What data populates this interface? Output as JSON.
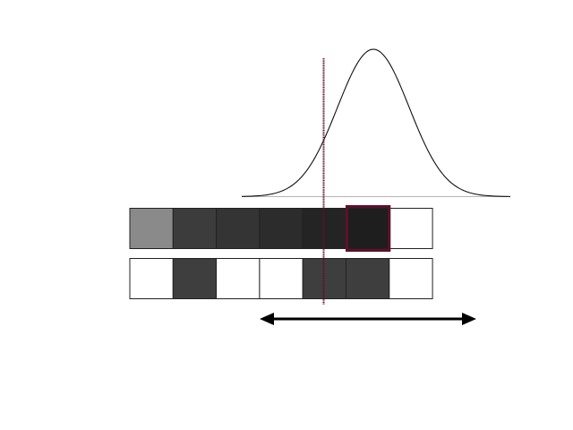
{
  "colors": {
    "background": "#ffffff",
    "curve": "#111111",
    "baseline": "#b4b4b4",
    "cell_border": "#222222",
    "highlight": "#5e0f2c",
    "arrow": "#000000"
  },
  "row1": {
    "cells": [
      "#8a8a8a",
      "#3c3c3c",
      "#343434",
      "#2c2c2c",
      "#242424",
      "#1e1e1e",
      "#ffffff"
    ],
    "highlighted_index": 5
  },
  "row2": {
    "cells": [
      "#ffffff",
      "#3e3e3e",
      "#ffffff",
      "#ffffff",
      "#3e3e3e",
      "#3e3e3e",
      "#ffffff"
    ]
  },
  "icons": {
    "arrow": "double-headed-arrow-icon"
  }
}
